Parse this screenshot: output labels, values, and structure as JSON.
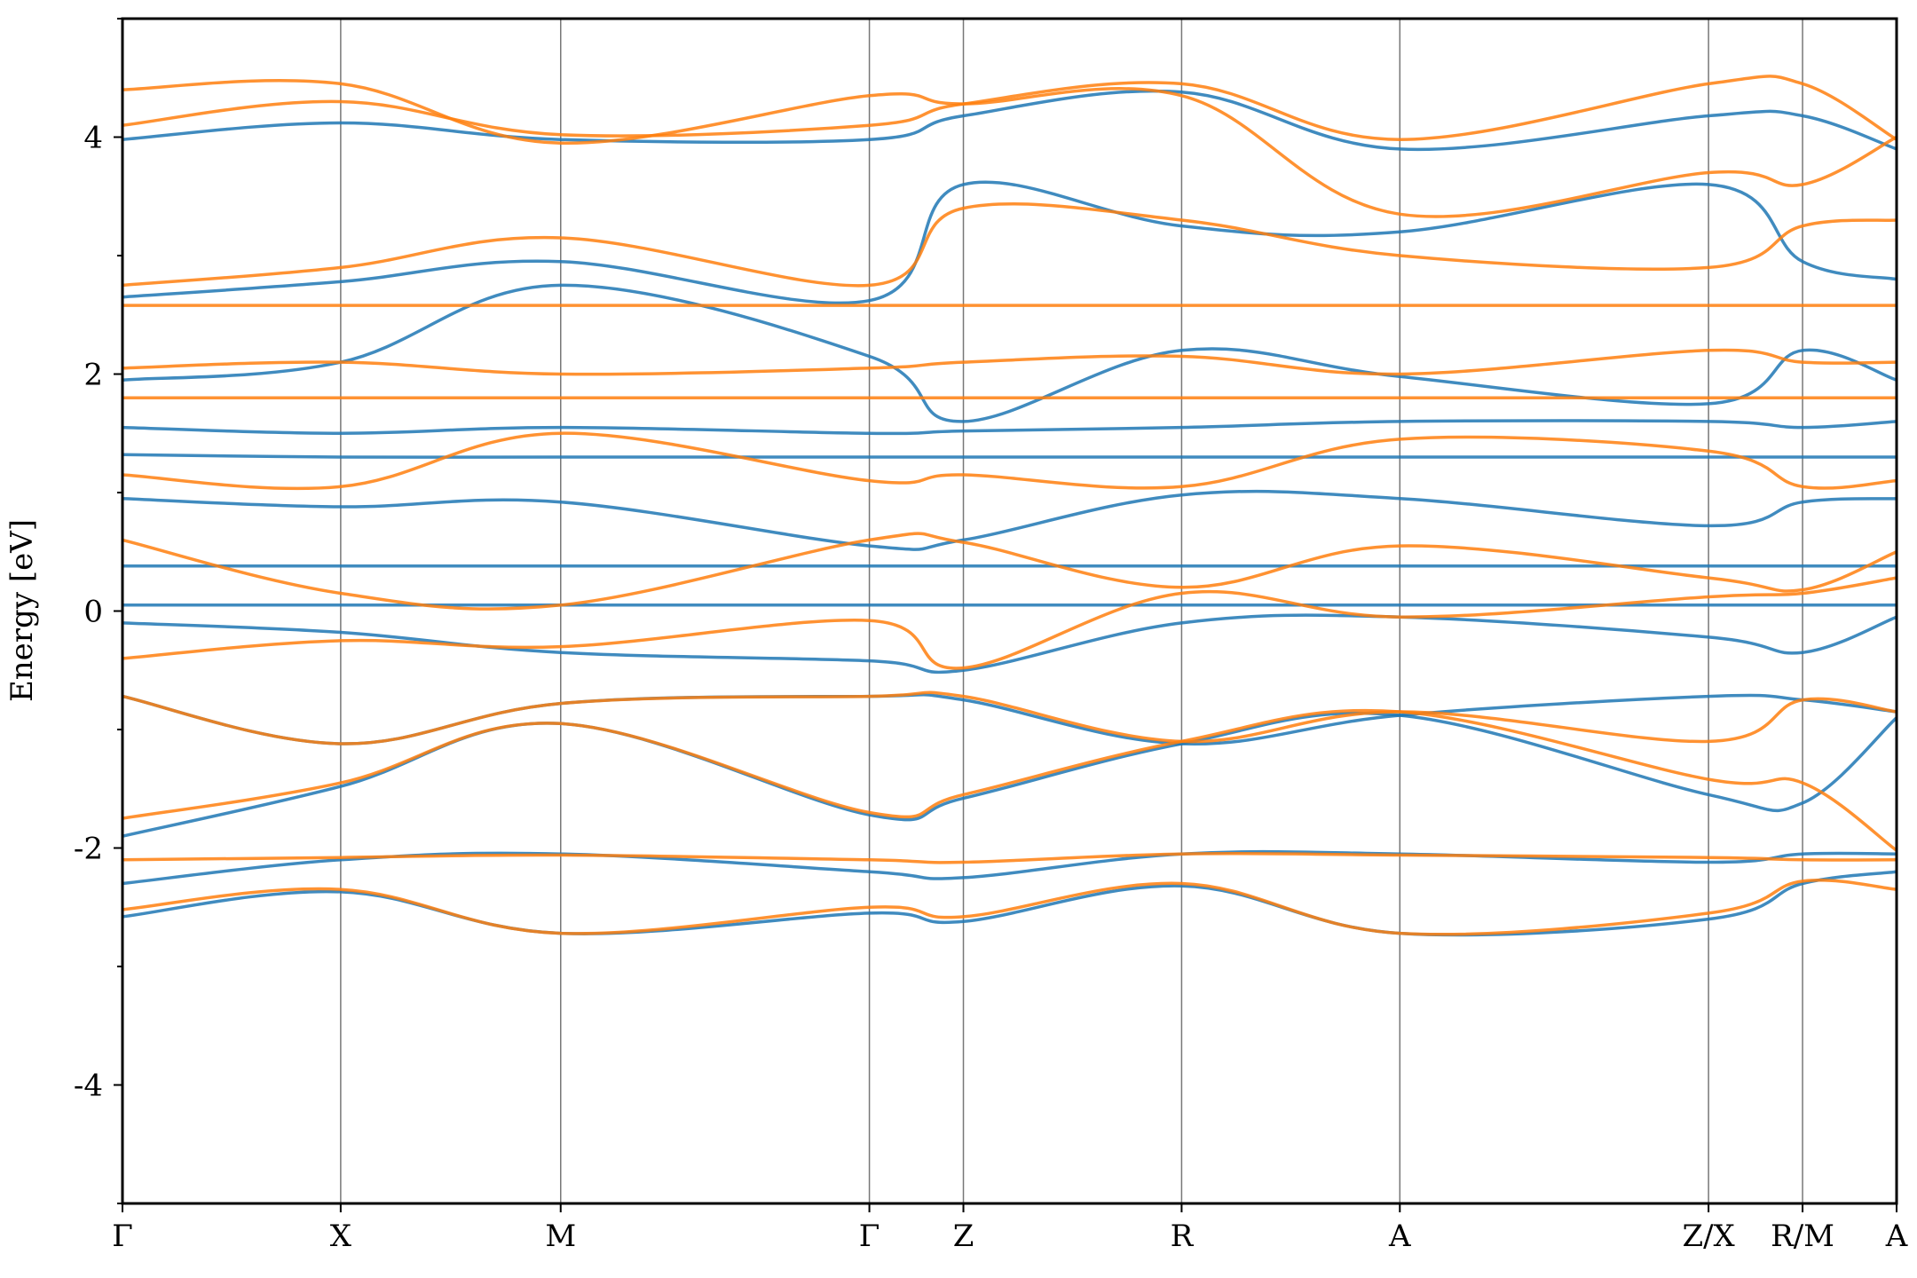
{
  "chart_data": {
    "type": "line",
    "title": "",
    "xlabel": "",
    "ylabel": "Energy [eV]",
    "ylim": [
      -5,
      5
    ],
    "yticks": [
      -4,
      -2,
      0,
      2,
      4
    ],
    "ytick_labels": [
      "-4",
      "-2",
      "0",
      "2",
      "4"
    ],
    "grid": false,
    "legend": "none",
    "kpath_ticks": [
      {
        "label": "Γ",
        "pos": 0.0
      },
      {
        "label": "X",
        "pos": 0.123
      },
      {
        "label": "M",
        "pos": 0.247
      },
      {
        "label": "Γ",
        "pos": 0.421
      },
      {
        "label": "Z",
        "pos": 0.474
      },
      {
        "label": "R",
        "pos": 0.597
      },
      {
        "label": "A",
        "pos": 0.72
      },
      {
        "label": "Z/X",
        "pos": 0.894
      },
      {
        "label": "R/M",
        "pos": 0.947
      },
      {
        "label": "A",
        "pos": 1.0
      }
    ],
    "series": [
      {
        "color": "#1f77b4",
        "bands": [
          [
            [
              0,
              -2.58
            ],
            [
              0.123,
              -2.37
            ],
            [
              0.247,
              -2.72
            ],
            [
              0.421,
              -2.55
            ],
            [
              0.474,
              -2.62
            ],
            [
              0.597,
              -2.32
            ],
            [
              0.72,
              -2.72
            ],
            [
              0.894,
              -2.6
            ],
            [
              0.947,
              -2.3
            ],
            [
              1,
              -2.2
            ]
          ],
          [
            [
              0,
              -2.3
            ],
            [
              0.123,
              -2.1
            ],
            [
              0.247,
              -2.05
            ],
            [
              0.421,
              -2.2
            ],
            [
              0.474,
              -2.25
            ],
            [
              0.597,
              -2.05
            ],
            [
              0.72,
              -2.05
            ],
            [
              0.894,
              -2.12
            ],
            [
              0.947,
              -2.05
            ],
            [
              1,
              -2.05
            ]
          ],
          [
            [
              0,
              -1.9
            ],
            [
              0.123,
              -1.48
            ],
            [
              0.247,
              -0.95
            ],
            [
              0.421,
              -1.72
            ],
            [
              0.474,
              -1.58
            ],
            [
              0.597,
              -1.12
            ],
            [
              0.72,
              -0.88
            ],
            [
              0.894,
              -1.55
            ],
            [
              0.947,
              -1.62
            ],
            [
              1,
              -0.9
            ]
          ],
          [
            [
              0,
              -0.72
            ],
            [
              0.123,
              -1.12
            ],
            [
              0.247,
              -0.78
            ],
            [
              0.421,
              -0.72
            ],
            [
              0.474,
              -0.75
            ],
            [
              0.597,
              -1.12
            ],
            [
              0.72,
              -0.88
            ],
            [
              0.894,
              -0.72
            ],
            [
              0.947,
              -0.75
            ],
            [
              1,
              -0.85
            ]
          ],
          [
            [
              0,
              -0.1
            ],
            [
              0.123,
              -0.18
            ],
            [
              0.247,
              -0.35
            ],
            [
              0.421,
              -0.42
            ],
            [
              0.474,
              -0.5
            ],
            [
              0.597,
              -0.1
            ],
            [
              0.72,
              -0.05
            ],
            [
              0.894,
              -0.22
            ],
            [
              0.947,
              -0.35
            ],
            [
              1,
              -0.05
            ]
          ],
          [
            [
              0,
              0.05
            ],
            [
              0.123,
              0.05
            ],
            [
              0.247,
              0.05
            ],
            [
              0.421,
              0.05
            ],
            [
              0.474,
              0.05
            ],
            [
              0.597,
              0.05
            ],
            [
              0.72,
              0.05
            ],
            [
              0.894,
              0.05
            ],
            [
              0.947,
              0.05
            ],
            [
              1,
              0.05
            ]
          ],
          [
            [
              0,
              0.38
            ],
            [
              0.123,
              0.38
            ],
            [
              0.247,
              0.38
            ],
            [
              0.421,
              0.38
            ],
            [
              0.474,
              0.38
            ],
            [
              0.597,
              0.38
            ],
            [
              0.72,
              0.38
            ],
            [
              0.894,
              0.38
            ],
            [
              0.947,
              0.38
            ],
            [
              1,
              0.38
            ]
          ],
          [
            [
              0,
              0.95
            ],
            [
              0.123,
              0.88
            ],
            [
              0.247,
              0.92
            ],
            [
              0.421,
              0.55
            ],
            [
              0.474,
              0.6
            ],
            [
              0.597,
              0.98
            ],
            [
              0.72,
              0.95
            ],
            [
              0.894,
              0.72
            ],
            [
              0.947,
              0.92
            ],
            [
              1,
              0.95
            ]
          ],
          [
            [
              0,
              1.32
            ],
            [
              0.123,
              1.3
            ],
            [
              0.247,
              1.3
            ],
            [
              0.421,
              1.3
            ],
            [
              0.474,
              1.3
            ],
            [
              0.597,
              1.3
            ],
            [
              0.72,
              1.3
            ],
            [
              0.894,
              1.3
            ],
            [
              0.947,
              1.3
            ],
            [
              1,
              1.3
            ]
          ],
          [
            [
              0,
              1.55
            ],
            [
              0.123,
              1.5
            ],
            [
              0.247,
              1.55
            ],
            [
              0.421,
              1.5
            ],
            [
              0.474,
              1.52
            ],
            [
              0.597,
              1.55
            ],
            [
              0.72,
              1.6
            ],
            [
              0.894,
              1.6
            ],
            [
              0.947,
              1.55
            ],
            [
              1,
              1.6
            ]
          ],
          [
            [
              0,
              1.95
            ],
            [
              0.123,
              2.1
            ],
            [
              0.247,
              2.75
            ],
            [
              0.421,
              2.15
            ],
            [
              0.474,
              1.6
            ],
            [
              0.597,
              2.2
            ],
            [
              0.72,
              1.98
            ],
            [
              0.894,
              1.75
            ],
            [
              0.947,
              2.2
            ],
            [
              1,
              1.95
            ]
          ],
          [
            [
              0,
              2.65
            ],
            [
              0.123,
              2.78
            ],
            [
              0.247,
              2.95
            ],
            [
              0.421,
              2.62
            ],
            [
              0.474,
              3.6
            ],
            [
              0.597,
              3.25
            ],
            [
              0.72,
              3.2
            ],
            [
              0.894,
              3.6
            ],
            [
              0.947,
              2.95
            ],
            [
              1,
              2.8
            ]
          ],
          [
            [
              0,
              3.98
            ],
            [
              0.123,
              4.12
            ],
            [
              0.247,
              3.98
            ],
            [
              0.421,
              3.98
            ],
            [
              0.474,
              4.18
            ],
            [
              0.597,
              4.38
            ],
            [
              0.72,
              3.9
            ],
            [
              0.894,
              4.18
            ],
            [
              0.947,
              4.18
            ],
            [
              1,
              3.9
            ]
          ]
        ]
      },
      {
        "color": "#ff7f0e",
        "bands": [
          [
            [
              0,
              -2.52
            ],
            [
              0.123,
              -2.35
            ],
            [
              0.247,
              -2.72
            ],
            [
              0.421,
              -2.5
            ],
            [
              0.474,
              -2.58
            ],
            [
              0.597,
              -2.3
            ],
            [
              0.72,
              -2.72
            ],
            [
              0.894,
              -2.55
            ],
            [
              0.947,
              -2.28
            ],
            [
              1,
              -2.35
            ]
          ],
          [
            [
              0,
              -2.1
            ],
            [
              0.123,
              -2.08
            ],
            [
              0.247,
              -2.06
            ],
            [
              0.421,
              -2.1
            ],
            [
              0.474,
              -2.12
            ],
            [
              0.597,
              -2.05
            ],
            [
              0.72,
              -2.06
            ],
            [
              0.894,
              -2.08
            ],
            [
              0.947,
              -2.1
            ],
            [
              1,
              -2.1
            ]
          ],
          [
            [
              0,
              -1.75
            ],
            [
              0.123,
              -1.45
            ],
            [
              0.247,
              -0.95
            ],
            [
              0.421,
              -1.7
            ],
            [
              0.474,
              -1.55
            ],
            [
              0.597,
              -1.1
            ],
            [
              0.72,
              -0.85
            ],
            [
              0.894,
              -1.42
            ],
            [
              0.947,
              -1.45
            ],
            [
              1,
              -2.02
            ]
          ],
          [
            [
              0,
              -0.72
            ],
            [
              0.123,
              -1.12
            ],
            [
              0.247,
              -0.78
            ],
            [
              0.421,
              -0.72
            ],
            [
              0.474,
              -0.72
            ],
            [
              0.597,
              -1.1
            ],
            [
              0.72,
              -0.85
            ],
            [
              0.894,
              -1.1
            ],
            [
              0.947,
              -0.75
            ],
            [
              1,
              -0.85
            ]
          ],
          [
            [
              0,
              -0.4
            ],
            [
              0.123,
              -0.25
            ],
            [
              0.247,
              -0.3
            ],
            [
              0.421,
              -0.08
            ],
            [
              0.474,
              -0.48
            ],
            [
              0.597,
              0.15
            ],
            [
              0.72,
              -0.05
            ],
            [
              0.894,
              0.12
            ],
            [
              0.947,
              0.15
            ],
            [
              1,
              0.28
            ]
          ],
          [
            [
              0,
              0.6
            ],
            [
              0.123,
              0.15
            ],
            [
              0.247,
              0.05
            ],
            [
              0.421,
              0.6
            ],
            [
              0.474,
              0.58
            ],
            [
              0.597,
              0.2
            ],
            [
              0.72,
              0.55
            ],
            [
              0.894,
              0.28
            ],
            [
              0.947,
              0.18
            ],
            [
              1,
              0.5
            ]
          ],
          [
            [
              0,
              1.15
            ],
            [
              0.123,
              1.05
            ],
            [
              0.247,
              1.5
            ],
            [
              0.421,
              1.1
            ],
            [
              0.474,
              1.15
            ],
            [
              0.597,
              1.05
            ],
            [
              0.72,
              1.45
            ],
            [
              0.894,
              1.35
            ],
            [
              0.947,
              1.05
            ],
            [
              1,
              1.1
            ]
          ],
          [
            [
              0,
              1.8
            ],
            [
              0.123,
              1.8
            ],
            [
              0.247,
              1.8
            ],
            [
              0.421,
              1.8
            ],
            [
              0.474,
              1.8
            ],
            [
              0.597,
              1.8
            ],
            [
              0.72,
              1.8
            ],
            [
              0.894,
              1.8
            ],
            [
              0.947,
              1.8
            ],
            [
              1,
              1.8
            ]
          ],
          [
            [
              0,
              2.05
            ],
            [
              0.123,
              2.1
            ],
            [
              0.247,
              2.0
            ],
            [
              0.421,
              2.05
            ],
            [
              0.474,
              2.1
            ],
            [
              0.597,
              2.15
            ],
            [
              0.72,
              2.0
            ],
            [
              0.894,
              2.2
            ],
            [
              0.947,
              2.1
            ],
            [
              1,
              2.1
            ]
          ],
          [
            [
              0,
              2.58
            ],
            [
              0.123,
              2.58
            ],
            [
              0.247,
              2.58
            ],
            [
              0.421,
              2.58
            ],
            [
              0.474,
              2.58
            ],
            [
              0.597,
              2.58
            ],
            [
              0.72,
              2.58
            ],
            [
              0.894,
              2.58
            ],
            [
              0.947,
              2.58
            ],
            [
              1,
              2.58
            ]
          ],
          [
            [
              0,
              2.75
            ],
            [
              0.123,
              2.9
            ],
            [
              0.247,
              3.15
            ],
            [
              0.421,
              2.75
            ],
            [
              0.474,
              3.4
            ],
            [
              0.597,
              3.3
            ],
            [
              0.72,
              3.0
            ],
            [
              0.894,
              2.9
            ],
            [
              0.947,
              3.25
            ],
            [
              1,
              3.3
            ]
          ],
          [
            [
              0,
              4.1
            ],
            [
              0.123,
              4.3
            ],
            [
              0.247,
              4.02
            ],
            [
              0.421,
              4.1
            ],
            [
              0.474,
              4.28
            ],
            [
              0.597,
              4.45
            ],
            [
              0.72,
              3.98
            ],
            [
              0.894,
              4.45
            ],
            [
              0.947,
              4.45
            ],
            [
              1,
              3.98
            ]
          ],
          [
            [
              0,
              4.4
            ],
            [
              0.123,
              4.45
            ],
            [
              0.247,
              3.95
            ],
            [
              0.421,
              4.35
            ],
            [
              0.474,
              4.28
            ],
            [
              0.597,
              4.35
            ],
            [
              0.72,
              3.35
            ],
            [
              0.894,
              3.7
            ],
            [
              0.947,
              3.6
            ],
            [
              1,
              4.0
            ]
          ]
        ]
      }
    ]
  }
}
